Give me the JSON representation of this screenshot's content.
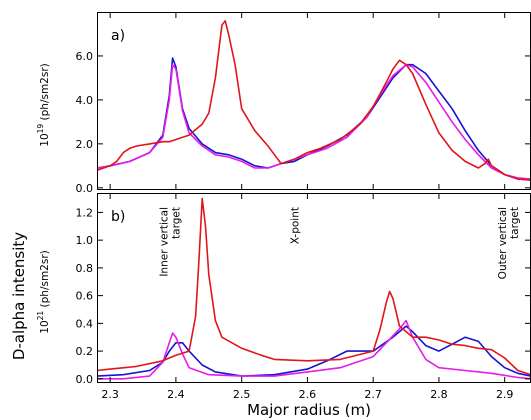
{
  "figure": {
    "ylabel_shared": "D-alpha intensity",
    "xlabel": "Major radius  (m)",
    "xlim": [
      2.28,
      2.94
    ],
    "x_ticks": [
      2.3,
      2.4,
      2.5,
      2.6,
      2.7,
      2.8,
      2.9
    ],
    "x_tick_labels": [
      "2.3",
      "2.4",
      "2.5",
      "2.6",
      "2.7",
      "2.8",
      "2.9"
    ]
  },
  "chart_data": [
    {
      "type": "line",
      "panel_label": "a)",
      "unit_exponent_base": "10",
      "unit_exponent": "19",
      "unit_label": "(ph/sm2sr)",
      "ylim": [
        -0.1,
        8.0
      ],
      "y_ticks": [
        0.0,
        2.0,
        4.0,
        6.0
      ],
      "y_tick_labels": [
        "0.0",
        "2.0",
        "4.0",
        "6.0"
      ],
      "series": [
        {
          "color": "#e0161c",
          "x": [
            2.28,
            2.3,
            2.31,
            2.32,
            2.33,
            2.34,
            2.36,
            2.38,
            2.39,
            2.4,
            2.42,
            2.44,
            2.45,
            2.46,
            2.47,
            2.475,
            2.48,
            2.49,
            2.5,
            2.52,
            2.54,
            2.55,
            2.56,
            2.58,
            2.6,
            2.62,
            2.65,
            2.68,
            2.7,
            2.72,
            2.73,
            2.74,
            2.75,
            2.76,
            2.78,
            2.8,
            2.82,
            2.84,
            2.86,
            2.87,
            2.875,
            2.88,
            2.9,
            2.92,
            2.94
          ],
          "y": [
            0.8,
            1.0,
            1.2,
            1.6,
            1.8,
            1.9,
            2.0,
            2.1,
            2.1,
            2.2,
            2.4,
            2.9,
            3.4,
            5.0,
            7.4,
            7.6,
            7.0,
            5.6,
            3.6,
            2.6,
            1.9,
            1.5,
            1.1,
            1.3,
            1.6,
            1.8,
            2.2,
            2.9,
            3.7,
            4.8,
            5.4,
            5.8,
            5.6,
            5.2,
            3.8,
            2.5,
            1.7,
            1.2,
            0.9,
            1.1,
            1.3,
            1.0,
            0.6,
            0.4,
            0.35
          ]
        },
        {
          "color": "#1414d4",
          "x": [
            2.28,
            2.3,
            2.33,
            2.36,
            2.38,
            2.39,
            2.395,
            2.4,
            2.41,
            2.42,
            2.44,
            2.46,
            2.48,
            2.5,
            2.52,
            2.54,
            2.56,
            2.58,
            2.6,
            2.63,
            2.66,
            2.69,
            2.71,
            2.73,
            2.75,
            2.76,
            2.78,
            2.8,
            2.82,
            2.84,
            2.86,
            2.88,
            2.9,
            2.92,
            2.94
          ],
          "y": [
            0.9,
            1.0,
            1.2,
            1.6,
            2.4,
            4.2,
            5.9,
            5.5,
            3.6,
            2.7,
            2.0,
            1.6,
            1.5,
            1.3,
            1.0,
            0.9,
            1.1,
            1.2,
            1.5,
            1.9,
            2.4,
            3.2,
            4.1,
            5.0,
            5.6,
            5.6,
            5.2,
            4.4,
            3.6,
            2.6,
            1.7,
            1.0,
            0.6,
            0.4,
            0.35
          ]
        },
        {
          "color": "#e81ce8",
          "x": [
            2.28,
            2.3,
            2.33,
            2.36,
            2.38,
            2.39,
            2.395,
            2.4,
            2.41,
            2.42,
            2.44,
            2.46,
            2.48,
            2.5,
            2.52,
            2.54,
            2.56,
            2.58,
            2.6,
            2.63,
            2.66,
            2.69,
            2.71,
            2.73,
            2.75,
            2.76,
            2.78,
            2.8,
            2.82,
            2.84,
            2.86,
            2.88,
            2.9,
            2.92,
            2.94
          ],
          "y": [
            0.9,
            1.0,
            1.2,
            1.6,
            2.3,
            4.0,
            5.6,
            5.4,
            3.5,
            2.5,
            1.9,
            1.5,
            1.4,
            1.2,
            0.9,
            0.9,
            1.1,
            1.3,
            1.5,
            1.8,
            2.3,
            3.2,
            4.2,
            5.1,
            5.6,
            5.5,
            4.8,
            3.9,
            3.0,
            2.2,
            1.5,
            0.9,
            0.6,
            0.45,
            0.4
          ]
        }
      ]
    },
    {
      "type": "line",
      "panel_label": "b)",
      "unit_exponent_base": "10",
      "unit_exponent": "21",
      "unit_label": "(ph/sm2sr)",
      "ylim": [
        -0.03,
        1.34
      ],
      "y_ticks": [
        0.0,
        0.2,
        0.4,
        0.6,
        0.8,
        1.0,
        1.2
      ],
      "y_tick_labels": [
        "0.0",
        "0.2",
        "0.4",
        "0.6",
        "0.8",
        "1.0",
        "1.2"
      ],
      "annotations": [
        {
          "lines": [
            "Inner vertical",
            "target"
          ],
          "x": 2.39
        },
        {
          "lines": [
            "X-point"
          ],
          "x": 2.58
        },
        {
          "lines": [
            "Outer vertical",
            "target"
          ],
          "x": 2.905
        }
      ],
      "series": [
        {
          "color": "#e0161c",
          "x": [
            2.28,
            2.3,
            2.34,
            2.38,
            2.4,
            2.42,
            2.43,
            2.435,
            2.44,
            2.445,
            2.45,
            2.46,
            2.47,
            2.5,
            2.53,
            2.55,
            2.6,
            2.65,
            2.7,
            2.71,
            2.72,
            2.725,
            2.73,
            2.74,
            2.76,
            2.78,
            2.8,
            2.82,
            2.84,
            2.86,
            2.88,
            2.9,
            2.92,
            2.94
          ],
          "y": [
            0.06,
            0.07,
            0.09,
            0.13,
            0.17,
            0.2,
            0.45,
            0.85,
            1.3,
            1.1,
            0.75,
            0.42,
            0.3,
            0.22,
            0.17,
            0.14,
            0.13,
            0.14,
            0.2,
            0.35,
            0.55,
            0.63,
            0.58,
            0.38,
            0.3,
            0.3,
            0.28,
            0.25,
            0.24,
            0.22,
            0.21,
            0.15,
            0.06,
            0.03
          ]
        },
        {
          "color": "#1414d4",
          "x": [
            2.28,
            2.32,
            2.36,
            2.38,
            2.39,
            2.4,
            2.41,
            2.42,
            2.44,
            2.46,
            2.5,
            2.55,
            2.6,
            2.63,
            2.66,
            2.7,
            2.73,
            2.75,
            2.76,
            2.78,
            2.8,
            2.82,
            2.84,
            2.86,
            2.88,
            2.9,
            2.92,
            2.94
          ],
          "y": [
            0.02,
            0.03,
            0.06,
            0.12,
            0.2,
            0.26,
            0.26,
            0.2,
            0.1,
            0.05,
            0.02,
            0.03,
            0.07,
            0.13,
            0.2,
            0.2,
            0.3,
            0.38,
            0.34,
            0.24,
            0.2,
            0.25,
            0.3,
            0.27,
            0.16,
            0.08,
            0.04,
            0.02
          ]
        },
        {
          "color": "#e81ce8",
          "x": [
            2.28,
            2.32,
            2.36,
            2.38,
            2.39,
            2.395,
            2.4,
            2.41,
            2.42,
            2.45,
            2.5,
            2.55,
            2.6,
            2.65,
            2.7,
            2.72,
            2.74,
            2.75,
            2.76,
            2.78,
            2.8,
            2.84,
            2.88,
            2.92,
            2.94
          ],
          "y": [
            0.0,
            0.0,
            0.02,
            0.12,
            0.26,
            0.33,
            0.3,
            0.18,
            0.08,
            0.03,
            0.02,
            0.02,
            0.05,
            0.08,
            0.16,
            0.26,
            0.36,
            0.42,
            0.3,
            0.14,
            0.08,
            0.06,
            0.04,
            0.01,
            0.0
          ]
        }
      ]
    }
  ]
}
